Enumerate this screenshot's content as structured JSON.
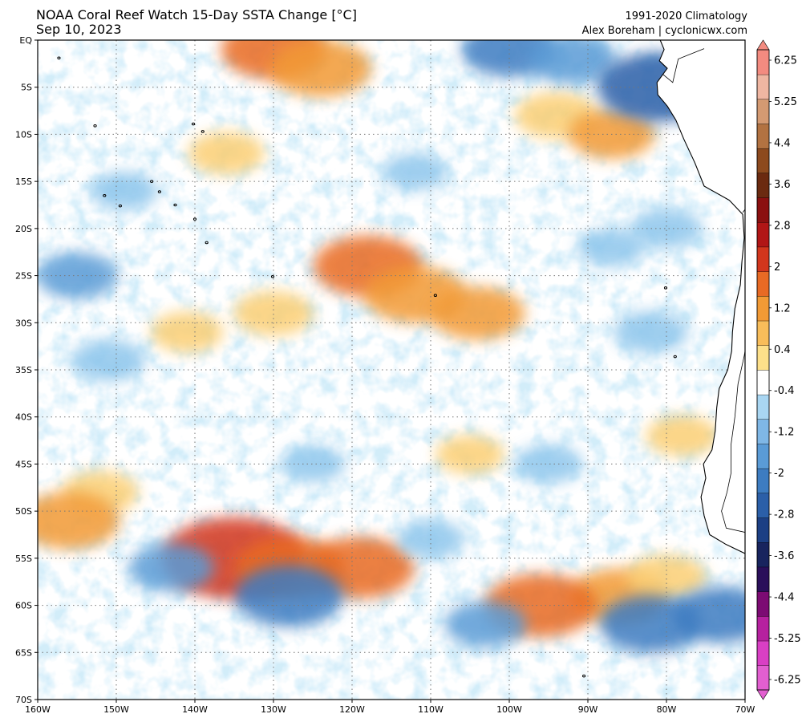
{
  "header": {
    "title": "NOAA Coral Reef Watch 15-Day SSTA Change [°C]",
    "date": "Sep 10, 2023",
    "climatology": "1991-2020 Climatology",
    "credit": "Alex Boreham | cyclonicwx.com"
  },
  "map": {
    "lat_labels": [
      "EQ",
      "5S",
      "10S",
      "15S",
      "20S",
      "25S",
      "30S",
      "35S",
      "40S",
      "45S",
      "50S",
      "55S",
      "60S",
      "65S",
      "70S"
    ],
    "lon_labels": [
      "160W",
      "150W",
      "140W",
      "130W",
      "120W",
      "110W",
      "100W",
      "90W",
      "80W",
      "70W"
    ],
    "lat_range": [
      0,
      -70
    ],
    "lon_range": [
      -160,
      -70
    ],
    "gridlines": "dotted",
    "warm_anomalies": [
      {
        "lon": -130,
        "lat": -1,
        "value": 1.5
      },
      {
        "lon": -124,
        "lat": -3,
        "value": 1.4
      },
      {
        "lon": -136,
        "lat": -12,
        "value": 0.7
      },
      {
        "lon": -118,
        "lat": -24,
        "value": 1.6
      },
      {
        "lon": -112,
        "lat": -27,
        "value": 1.4
      },
      {
        "lon": -104,
        "lat": -29,
        "value": 1.2
      },
      {
        "lon": -130,
        "lat": -29,
        "value": 0.8
      },
      {
        "lon": -94,
        "lat": -8,
        "value": 0.9
      },
      {
        "lon": -87,
        "lat": -10,
        "value": 1.0
      },
      {
        "lon": -141,
        "lat": -31,
        "value": 0.6
      },
      {
        "lon": -152,
        "lat": -48,
        "value": 0.7
      },
      {
        "lon": -135,
        "lat": -55,
        "value": 2.6
      },
      {
        "lon": -128,
        "lat": -56,
        "value": 1.6
      },
      {
        "lon": -119,
        "lat": -56,
        "value": 1.6
      },
      {
        "lon": -86,
        "lat": -59,
        "value": 1.3
      },
      {
        "lon": -80,
        "lat": -57,
        "value": 0.8
      },
      {
        "lon": -96,
        "lat": -60,
        "value": 1.7
      },
      {
        "lon": -156,
        "lat": -51,
        "value": 1.4
      },
      {
        "lon": -105,
        "lat": -44,
        "value": 0.5
      },
      {
        "lon": -78,
        "lat": -42,
        "value": 0.6
      }
    ],
    "cool_anomalies": [
      {
        "lon": -100,
        "lat": -1,
        "value": -1.4
      },
      {
        "lon": -92,
        "lat": -2,
        "value": -1.2
      },
      {
        "lon": -81,
        "lat": -5,
        "value": -2.2
      },
      {
        "lon": -155,
        "lat": -25,
        "value": -1.0
      },
      {
        "lon": -151,
        "lat": -34,
        "value": -0.8
      },
      {
        "lon": -80,
        "lat": -20,
        "value": -0.7
      },
      {
        "lon": -82,
        "lat": -31,
        "value": -0.8
      },
      {
        "lon": -143,
        "lat": -56,
        "value": -1.1
      },
      {
        "lon": -128,
        "lat": -59,
        "value": -1.8
      },
      {
        "lon": -103,
        "lat": -62,
        "value": -1.0
      },
      {
        "lon": -82,
        "lat": -62,
        "value": -1.6
      },
      {
        "lon": -73,
        "lat": -61,
        "value": -1.5
      },
      {
        "lon": -110,
        "lat": -53,
        "value": -0.6
      },
      {
        "lon": -125,
        "lat": -45,
        "value": -0.5
      },
      {
        "lon": -95,
        "lat": -45,
        "value": -0.6
      },
      {
        "lon": -87,
        "lat": -22,
        "value": -0.6
      },
      {
        "lon": -149,
        "lat": -16,
        "value": -0.6
      },
      {
        "lon": -112,
        "lat": -14,
        "value": -0.5
      }
    ]
  },
  "colorbar": {
    "labels": [
      "6.25",
      "5.25",
      "4.4",
      "3.6",
      "2.8",
      "2",
      "1.2",
      "0.4",
      "-0.4",
      "-1.2",
      "-2",
      "-2.8",
      "-3.6",
      "-4.4",
      "-5.25",
      "-6.25"
    ],
    "range": [
      -7,
      7
    ],
    "colors": [
      "#e25fd0",
      "#d93fc4",
      "#b6219f",
      "#7c0b73",
      "#2a0f5a",
      "#18245e",
      "#1c3f84",
      "#2b5fa8",
      "#3d7cc1",
      "#5a9bd6",
      "#7fb7e6",
      "#a9d6f2",
      "#ffffff",
      "#fde08a",
      "#f8bd5a",
      "#f29a35",
      "#e86a24",
      "#d2361d",
      "#b11616",
      "#8b1010",
      "#6b2a10",
      "#8d4a1e",
      "#b27241",
      "#d49a72",
      "#efb6a2",
      "#f38b80"
    ]
  },
  "coast": {
    "color": "#000000"
  }
}
